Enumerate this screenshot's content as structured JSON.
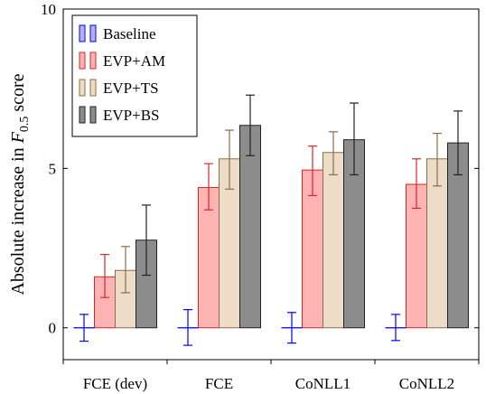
{
  "chart_data": {
    "type": "bar",
    "ylabel_prefix": "Absolute increase in ",
    "ylabel_math": "F",
    "ylabel_sub": "0.5",
    "ylabel_suffix": " score",
    "ylim": [
      -1,
      10
    ],
    "yticks": [
      0,
      5,
      10
    ],
    "categories": [
      "FCE (dev)",
      "FCE",
      "CoNLL1",
      "CoNLL2"
    ],
    "legend_position": "top-left",
    "series": [
      {
        "name": "Baseline",
        "color": "#0000ff",
        "fill": "#b3b3ff",
        "values": [
          0,
          0,
          0,
          0
        ],
        "err_low": [
          -0.42,
          -0.55,
          -0.48,
          -0.4
        ],
        "err_high": [
          0.42,
          0.57,
          0.48,
          0.42
        ]
      },
      {
        "name": "EVP+AM",
        "color": "#d62728",
        "fill": "#ffb3b3",
        "values": [
          1.6,
          4.4,
          4.95,
          4.5
        ],
        "err_low": [
          0.95,
          3.7,
          4.15,
          3.75
        ],
        "err_high": [
          2.3,
          5.15,
          5.7,
          5.3
        ]
      },
      {
        "name": "EVP+TS",
        "color": "#8c6d46",
        "fill": "#ecdcc8",
        "values": [
          1.8,
          5.3,
          5.5,
          5.3
        ],
        "err_low": [
          1.1,
          4.35,
          4.8,
          4.45
        ],
        "err_high": [
          2.55,
          6.2,
          6.15,
          6.1
        ]
      },
      {
        "name": "EVP+BS",
        "color": "#222222",
        "fill": "#8c8c8c",
        "values": [
          2.75,
          6.35,
          5.9,
          5.8
        ],
        "err_low": [
          1.65,
          5.4,
          4.8,
          4.8
        ],
        "err_high": [
          3.85,
          7.3,
          7.05,
          6.8
        ]
      }
    ]
  }
}
